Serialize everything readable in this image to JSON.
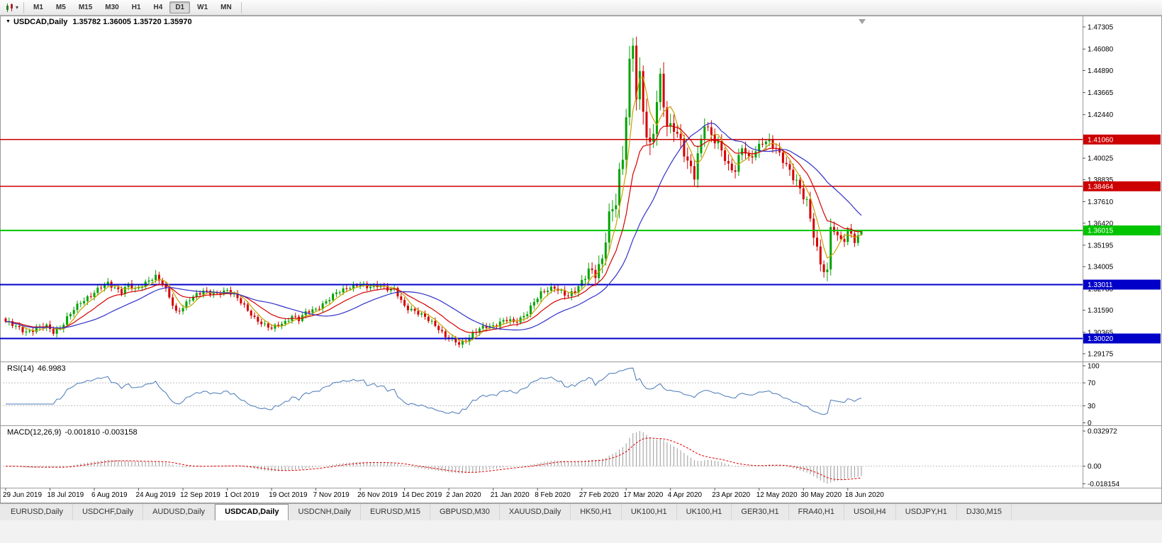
{
  "toolbar": {
    "timeframes": [
      "M1",
      "M5",
      "M15",
      "M30",
      "H1",
      "H4",
      "D1",
      "W1",
      "MN"
    ],
    "selected_timeframe": "D1"
  },
  "chart": {
    "title": "USDCAD,Daily",
    "ohlc_text": "1.35782 1.36005 1.35720 1.35970",
    "open": "1.35782",
    "high": "1.36005",
    "low": "1.35720",
    "close": "1.35970"
  },
  "indicators": {
    "rsi": {
      "label": "RSI(14)",
      "value": "46.9983"
    },
    "macd": {
      "label": "MACD(12,26,9)",
      "values": "-0.001810 -0.003158"
    }
  },
  "tabs": {
    "items": [
      "EURUSD,Daily",
      "USDCHF,Daily",
      "AUDUSD,Daily",
      "USDCAD,Daily",
      "USDCNH,Daily",
      "EURUSD,M15",
      "GBPUSD,M30",
      "XAUUSD,Daily",
      "HK50,H1",
      "UK100,H1",
      "UK100,H1",
      "GER30,H1",
      "FRA40,H1",
      "USOil,H4",
      "USDJPY,H1",
      "DJ30,M15"
    ],
    "selected_index": 3
  },
  "colors": {
    "candle_up": "#00A300",
    "candle_down": "#D40000",
    "ma_fast": "#C8A000",
    "ma_medium": "#D40000",
    "ma_slow": "#3030C8",
    "hline_red": "#CC0000",
    "hline_green": "#00C400",
    "hline_blue": "#0000C8",
    "rsi_line": "#4878B8",
    "macd_histogram": "#999999",
    "macd_signal": "#E00000",
    "level_dash": "#C0C0C0",
    "axis_text": "#000000",
    "badge_text": "#FFFFFF"
  },
  "chart_data": {
    "type": "candlestick",
    "symbol": "USDCAD",
    "period": "Daily",
    "bars": 252,
    "price_range": [
      1.289,
      1.477
    ],
    "y_ticks": [
      "1.47305",
      "1.46080",
      "1.44890",
      "1.43665",
      "1.42440",
      "1.40025",
      "1.38835",
      "1.37610",
      "1.36420",
      "1.35195",
      "1.34005",
      "1.32780",
      "1.31590",
      "1.30365",
      "1.29175"
    ],
    "badges": [
      {
        "text": "1.41060",
        "color": "#CC0000"
      },
      {
        "text": "1.38464",
        "color": "#CC0000"
      },
      {
        "text": "1.36015",
        "color": "#00C400"
      },
      {
        "text": "1.33011",
        "color": "#0000C8"
      },
      {
        "text": "1.30020",
        "color": "#0000C8"
      }
    ],
    "h_lines": [
      {
        "price": 1.4106,
        "color": "#CC0000",
        "width": 1.5
      },
      {
        "price": 1.38464,
        "color": "#CC0000",
        "width": 1.5
      },
      {
        "price": 1.36015,
        "color": "#00C400",
        "width": 2
      },
      {
        "price": 1.33011,
        "color": "#0000C8",
        "width": 2
      },
      {
        "price": 1.3002,
        "color": "#0000C8",
        "width": 2
      }
    ],
    "x_labels": [
      "29 Jun 2019",
      "18 Jul 2019",
      "6 Aug 2019",
      "24 Aug 2019",
      "12 Sep 2019",
      "1 Oct 2019",
      "19 Oct 2019",
      "7 Nov 2019",
      "26 Nov 2019",
      "14 Dec 2019",
      "2 Jan 2020",
      "21 Jan 2020",
      "8 Feb 2020",
      "27 Feb 2020",
      "17 Mar 2020",
      "4 Apr 2020",
      "23 Apr 2020",
      "12 May 2020",
      "30 May 2020",
      "18 Jun 2020"
    ],
    "x_label_bars": [
      0,
      13,
      26,
      39,
      52,
      65,
      78,
      91,
      104,
      117,
      130,
      143,
      156,
      169,
      182,
      195,
      208,
      221,
      234,
      247
    ],
    "close_anchors": [
      [
        0,
        1.3095
      ],
      [
        3,
        1.3065
      ],
      [
        6,
        1.3042
      ],
      [
        9,
        1.3056
      ],
      [
        12,
        1.3068
      ],
      [
        14,
        1.3042
      ],
      [
        16,
        1.3062
      ],
      [
        18,
        1.3112
      ],
      [
        20,
        1.316
      ],
      [
        22,
        1.3205
      ],
      [
        24,
        1.3232
      ],
      [
        26,
        1.3256
      ],
      [
        28,
        1.3285
      ],
      [
        30,
        1.3308
      ],
      [
        32,
        1.3288
      ],
      [
        34,
        1.3262
      ],
      [
        36,
        1.3296
      ],
      [
        38,
        1.327
      ],
      [
        40,
        1.3302
      ],
      [
        42,
        1.3328
      ],
      [
        44,
        1.3342
      ],
      [
        46,
        1.33
      ],
      [
        48,
        1.3238
      ],
      [
        50,
        1.3152
      ],
      [
        52,
        1.3172
      ],
      [
        54,
        1.3215
      ],
      [
        56,
        1.3246
      ],
      [
        58,
        1.3272
      ],
      [
        60,
        1.3256
      ],
      [
        62,
        1.3242
      ],
      [
        65,
        1.327
      ],
      [
        67,
        1.3252
      ],
      [
        69,
        1.3205
      ],
      [
        71,
        1.3152
      ],
      [
        73,
        1.3112
      ],
      [
        75,
        1.3092
      ],
      [
        78,
        1.3058
      ],
      [
        80,
        1.3072
      ],
      [
        82,
        1.3092
      ],
      [
        84,
        1.3132
      ],
      [
        86,
        1.3108
      ],
      [
        88,
        1.3142
      ],
      [
        91,
        1.3165
      ],
      [
        93,
        1.3196
      ],
      [
        95,
        1.3222
      ],
      [
        97,
        1.3252
      ],
      [
        99,
        1.3272
      ],
      [
        101,
        1.3292
      ],
      [
        104,
        1.3302
      ],
      [
        106,
        1.3282
      ],
      [
        108,
        1.3296
      ],
      [
        110,
        1.3302
      ],
      [
        112,
        1.3276
      ],
      [
        114,
        1.327
      ],
      [
        117,
        1.3182
      ],
      [
        119,
        1.3166
      ],
      [
        121,
        1.3142
      ],
      [
        123,
        1.3116
      ],
      [
        125,
        1.3092
      ],
      [
        127,
        1.3062
      ],
      [
        129,
        1.3012
      ],
      [
        131,
        1.2992
      ],
      [
        133,
        1.297
      ],
      [
        135,
        1.2996
      ],
      [
        137,
        1.3032
      ],
      [
        139,
        1.3052
      ],
      [
        141,
        1.3066
      ],
      [
        143,
        1.3072
      ],
      [
        145,
        1.3096
      ],
      [
        147,
        1.3106
      ],
      [
        149,
        1.3086
      ],
      [
        151,
        1.3112
      ],
      [
        153,
        1.3152
      ],
      [
        155,
        1.3206
      ],
      [
        157,
        1.3246
      ],
      [
        159,
        1.3272
      ],
      [
        161,
        1.3292
      ],
      [
        163,
        1.3262
      ],
      [
        165,
        1.3232
      ],
      [
        167,
        1.3262
      ],
      [
        169,
        1.3322
      ],
      [
        171,
        1.3392
      ],
      [
        173,
        1.3352
      ],
      [
        175,
        1.3422
      ],
      [
        177,
        1.3692
      ],
      [
        178,
        1.3732
      ],
      [
        179,
        1.3792
      ],
      [
        180,
        1.3922
      ],
      [
        181,
        1.3992
      ],
      [
        182,
        1.4242
      ],
      [
        183,
        1.4492
      ],
      [
        184,
        1.4622
      ],
      [
        185,
        1.4352
      ],
      [
        186,
        1.4462
      ],
      [
        187,
        1.4302
      ],
      [
        188,
        1.4152
      ],
      [
        189,
        1.4062
      ],
      [
        190,
        1.4152
      ],
      [
        191,
        1.4302
      ],
      [
        192,
        1.4422
      ],
      [
        193,
        1.4302
      ],
      [
        194,
        1.4182
      ],
      [
        196,
        1.4192
      ],
      [
        198,
        1.4092
      ],
      [
        200,
        1.3962
      ],
      [
        202,
        1.3906
      ],
      [
        203,
        1.4022
      ],
      [
        205,
        1.4212
      ],
      [
        206,
        1.4162
      ],
      [
        208,
        1.4092
      ],
      [
        210,
        1.4042
      ],
      [
        212,
        1.3962
      ],
      [
        214,
        1.3946
      ],
      [
        216,
        1.4062
      ],
      [
        218,
        1.3986
      ],
      [
        220,
        1.4046
      ],
      [
        222,
        1.4106
      ],
      [
        224,
        1.4092
      ],
      [
        226,
        1.4042
      ],
      [
        228,
        1.3992
      ],
      [
        230,
        1.3942
      ],
      [
        232,
        1.3872
      ],
      [
        234,
        1.3782
      ],
      [
        235,
        1.3746
      ],
      [
        236,
        1.3662
      ],
      [
        237,
        1.3582
      ],
      [
        238,
        1.3502
      ],
      [
        239,
        1.3432
      ],
      [
        240,
        1.3392
      ],
      [
        241,
        1.3366
      ],
      [
        242,
        1.3622
      ],
      [
        243,
        1.3592
      ],
      [
        244,
        1.3552
      ],
      [
        245,
        1.3562
      ],
      [
        246,
        1.3546
      ],
      [
        247,
        1.3606
      ],
      [
        248,
        1.3602
      ],
      [
        249,
        1.3536
      ],
      [
        250,
        1.3562
      ],
      [
        251,
        1.3597
      ]
    ],
    "volatility_anchors": [
      [
        0,
        0.0035
      ],
      [
        40,
        0.0035
      ],
      [
        80,
        0.003
      ],
      [
        130,
        0.0032
      ],
      [
        168,
        0.004
      ],
      [
        176,
        0.0095
      ],
      [
        182,
        0.0135
      ],
      [
        188,
        0.0125
      ],
      [
        196,
        0.0095
      ],
      [
        210,
        0.0065
      ],
      [
        228,
        0.0055
      ],
      [
        238,
        0.0075
      ],
      [
        244,
        0.0052
      ],
      [
        251,
        0.004
      ]
    ],
    "high_overrides": [
      [
        44,
        1.3382
      ],
      [
        184,
        1.467
      ],
      [
        242,
        1.3668
      ]
    ],
    "low_overrides": [
      [
        133,
        1.2952
      ],
      [
        241,
        1.332
      ]
    ],
    "last_candle": {
      "open": 1.35782,
      "high": 1.36005,
      "low": 1.3572,
      "close": 1.3597
    },
    "moving_averages": [
      {
        "name": "fast",
        "type": "sma",
        "period": 5,
        "color": "#C8A000"
      },
      {
        "name": "medium",
        "type": "ema",
        "period": 14,
        "color": "#D40000"
      },
      {
        "name": "slow",
        "type": "sma",
        "period": 26,
        "color": "#3030C8"
      }
    ],
    "rsi": {
      "period": 14,
      "current": 46.9983,
      "levels": [
        "100",
        "70",
        "30",
        "0"
      ],
      "dashed_levels": [
        70,
        30
      ]
    },
    "macd": {
      "fast": 12,
      "slow": 26,
      "signal": 9,
      "current_main": -0.00181,
      "current_signal": -0.003158,
      "axis_labels": [
        "0.032972",
        "0.00",
        "-0.018154"
      ]
    }
  }
}
